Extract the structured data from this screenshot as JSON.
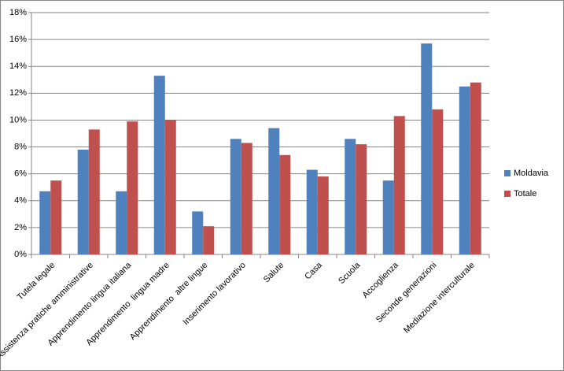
{
  "chart_data": {
    "type": "bar",
    "categories": [
      "Tutela legale",
      "Assistenza pratiche amministrative",
      "Apprendimento lingua italiana",
      "Apprendimento  lingua madre",
      "Apprendimento  altre lingue",
      "Inserimento lavorativo",
      "Salute",
      "Casa",
      "Scuola",
      "Accoglienza",
      "Seconde generazioni",
      "Mediazione interculturale"
    ],
    "series": [
      {
        "name": "Moldavia",
        "color": "#4f81bd",
        "values": [
          4.7,
          7.8,
          4.7,
          13.3,
          3.2,
          8.6,
          9.4,
          6.3,
          8.6,
          5.5,
          15.7,
          12.5
        ]
      },
      {
        "name": "Totale",
        "color": "#c0504d",
        "values": [
          5.5,
          9.3,
          9.9,
          10.0,
          2.1,
          8.3,
          7.4,
          5.8,
          8.2,
          10.3,
          10.8,
          12.8
        ]
      }
    ],
    "ylim": [
      0,
      18
    ],
    "yticks": [
      {
        "value": 0,
        "label": "0%"
      },
      {
        "value": 2,
        "label": "2%"
      },
      {
        "value": 4,
        "label": "4%"
      },
      {
        "value": 6,
        "label": "6%"
      },
      {
        "value": 8,
        "label": "8%"
      },
      {
        "value": 10,
        "label": "10%"
      },
      {
        "value": 12,
        "label": "12%"
      },
      {
        "value": 14,
        "label": "14%"
      },
      {
        "value": 16,
        "label": "16%"
      },
      {
        "value": 18,
        "label": "18%"
      }
    ],
    "grid": true,
    "legend": "right"
  }
}
